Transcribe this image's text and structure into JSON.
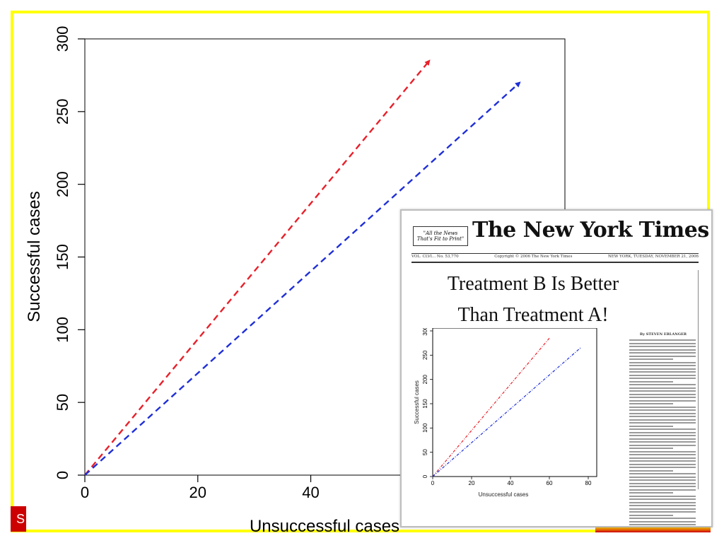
{
  "chart_data": [
    {
      "type": "line",
      "title": "",
      "xlabel": "Unsuccessful cases",
      "ylabel": "Successful cases",
      "xlim": [
        0,
        85
      ],
      "ylim": [
        0,
        300
      ],
      "xticks": [
        0,
        20,
        40
      ],
      "yticks": [
        0,
        50,
        100,
        150,
        200,
        250,
        300
      ],
      "grid": false,
      "series": [
        {
          "color": "#e8202a",
          "style": "dashed-arrow",
          "x": [
            0,
            61
          ],
          "y": [
            0,
            285
          ]
        },
        {
          "color": "#1f2fd8",
          "style": "dashed-arrow",
          "x": [
            0,
            77
          ],
          "y": [
            0,
            270
          ]
        }
      ]
    },
    {
      "type": "line",
      "title": "",
      "xlabel": "Unsuccessful cases",
      "ylabel": "Successful cases",
      "xlim": [
        0,
        80
      ],
      "ylim": [
        0,
        300
      ],
      "xticks": [
        0,
        20,
        40,
        60,
        80
      ],
      "yticks": [
        0,
        50,
        100,
        150,
        200,
        250,
        300
      ],
      "grid": false,
      "series": [
        {
          "color": "#e8202a",
          "style": "dash-dot",
          "x": [
            0,
            60
          ],
          "y": [
            0,
            285
          ]
        },
        {
          "color": "#1f2fd8",
          "style": "dash-dot",
          "x": [
            0,
            76
          ],
          "y": [
            0,
            265
          ]
        }
      ]
    }
  ],
  "footer": {
    "left_tab_text": "S",
    "left_tab_color": "#cc0000",
    "frame_color": "#ffff00"
  },
  "newspaper": {
    "ear_line1": "\"All the News",
    "ear_line2": "That's Fit to Print\"",
    "masthead": "The New York Times",
    "dateline_left": "VOL. CLVI... No. 53,770",
    "dateline_center": "Copyright © 2006 The New York Times",
    "dateline_right": "NEW YORK, TUESDAY, NOVEMBER 21, 2006",
    "headline_line1": "Treatment B Is Better",
    "headline_line2": "Than Treatment A!",
    "byline": "By STEVEN ERLANGER"
  }
}
